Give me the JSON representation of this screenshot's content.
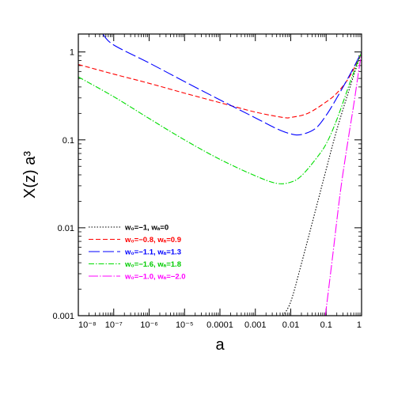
{
  "chart_data": {
    "type": "line",
    "xlabel": "a",
    "ylabel": "X(z) a³",
    "xscale": "log",
    "yscale": "log",
    "xlim": [
      1e-08,
      1
    ],
    "ylim": [
      0.001,
      1.6
    ],
    "x_ticks": [
      {
        "value": 1e-08,
        "label": "10⁻⁸"
      },
      {
        "value": 1e-07,
        "label": "10⁻⁷"
      },
      {
        "value": 1e-06,
        "label": "10⁻⁶"
      },
      {
        "value": 1e-05,
        "label": "10⁻⁵"
      },
      {
        "value": 0.0001,
        "label": "0.0001"
      },
      {
        "value": 0.001,
        "label": "0.001"
      },
      {
        "value": 0.01,
        "label": "0.01"
      },
      {
        "value": 0.1,
        "label": "0.1"
      },
      {
        "value": 1,
        "label": "1"
      }
    ],
    "y_ticks": [
      {
        "value": 0.001,
        "label": "0.001"
      },
      {
        "value": 0.01,
        "label": "0.01"
      },
      {
        "value": 0.1,
        "label": "0.1"
      },
      {
        "value": 1,
        "label": "1"
      }
    ],
    "legend_position": "bottom-left",
    "series": [
      {
        "name": "w₀=−1,  wₐ=0",
        "color": "#000000",
        "dash": "1.5,2",
        "x": [
          0.006,
          0.01,
          0.02,
          0.05,
          0.1,
          0.2,
          0.5,
          1
        ],
        "y": [
          0.001,
          0.00144,
          0.0039,
          0.0158,
          0.046,
          0.13,
          0.43,
          1
        ]
      },
      {
        "name": "w₀=−0.8,  wₐ=0.9",
        "color": "#ff0000",
        "dash": "6,3",
        "x": [
          1e-08,
          1e-07,
          1e-06,
          1e-05,
          0.0001,
          0.001,
          0.006,
          0.01,
          0.03,
          0.1,
          0.2,
          0.4,
          0.7,
          1
        ],
        "y": [
          0.72,
          0.56,
          0.44,
          0.34,
          0.265,
          0.207,
          0.18,
          0.18,
          0.2,
          0.27,
          0.34,
          0.48,
          0.72,
          1
        ]
      },
      {
        "name": "w₀=−1.1,  wₐ=1.3",
        "color": "#0000ff",
        "dash": "14,4",
        "x": [
          5e-08,
          1e-07,
          1e-06,
          1e-05,
          0.0001,
          0.001,
          0.004,
          0.01,
          0.02,
          0.05,
          0.1,
          0.2,
          0.5,
          1
        ],
        "y": [
          1.58,
          1.2,
          0.75,
          0.46,
          0.285,
          0.178,
          0.134,
          0.117,
          0.115,
          0.135,
          0.19,
          0.3,
          0.58,
          1
        ]
      },
      {
        "name": "w₀=−1.6,  wₐ=1.8",
        "color": "#00dd00",
        "dash": "7,2,1.5,2",
        "x": [
          1e-08,
          1e-07,
          1e-06,
          1e-05,
          0.0001,
          0.001,
          0.004,
          0.01,
          0.02,
          0.05,
          0.1,
          0.2,
          0.5,
          1
        ],
        "y": [
          0.52,
          0.31,
          0.175,
          0.1,
          0.06,
          0.039,
          0.032,
          0.033,
          0.039,
          0.06,
          0.09,
          0.17,
          0.48,
          1
        ]
      },
      {
        "name": "w₀=−1.0,  wₐ=−2.0",
        "color": "#ff00ff",
        "dash": "12,2,1.5,2",
        "x": [
          0.095,
          0.15,
          0.25,
          0.4,
          0.6,
          0.8,
          1
        ],
        "y": [
          0.001,
          0.0045,
          0.025,
          0.09,
          0.25,
          0.55,
          1
        ]
      }
    ]
  }
}
